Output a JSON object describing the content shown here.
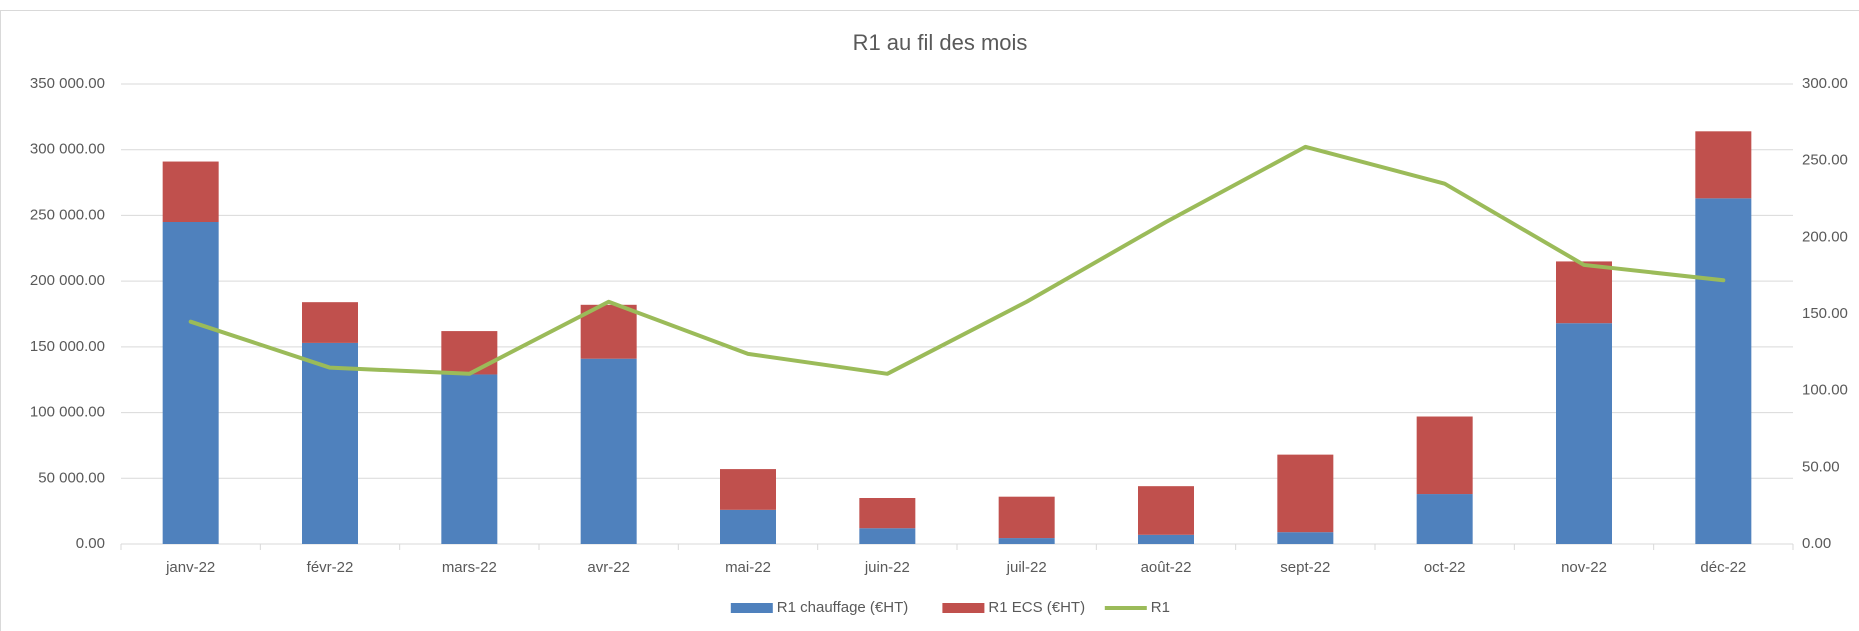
{
  "chart_data": {
    "type": "bar",
    "stacked": true,
    "title": "R1 au fil des mois",
    "categories": [
      "janv-22",
      "févr-22",
      "mars-22",
      "avr-22",
      "mai-22",
      "juin-22",
      "juil-22",
      "août-22",
      "sept-22",
      "oct-22",
      "nov-22",
      "déc-22"
    ],
    "series": [
      {
        "name": "R1 chauffage (€HT)",
        "type": "bar",
        "color": "#4f81bd",
        "values": [
          245000,
          153000,
          129000,
          141000,
          26000,
          12000,
          4500,
          7000,
          9000,
          38000,
          168000,
          263000
        ]
      },
      {
        "name": "R1 ECS (€HT)",
        "type": "bar",
        "color": "#c0504d",
        "values": [
          46000,
          31000,
          33000,
          41000,
          31000,
          23000,
          31500,
          37000,
          59000,
          59000,
          47000,
          51000
        ]
      },
      {
        "name": "R1",
        "type": "line",
        "axis": "y2",
        "color": "#9bbb59",
        "values": [
          145,
          115,
          111,
          158,
          124,
          111,
          158,
          210,
          259,
          235,
          182,
          172
        ]
      }
    ],
    "ylim": [
      0,
      350000
    ],
    "yticks": [
      {
        "value": 0,
        "label": "0.00"
      },
      {
        "value": 50000,
        "label": "50 000.00"
      },
      {
        "value": 100000,
        "label": "100 000.00"
      },
      {
        "value": 150000,
        "label": "150 000.00"
      },
      {
        "value": 200000,
        "label": "200 000.00"
      },
      {
        "value": 250000,
        "label": "250 000.00"
      },
      {
        "value": 300000,
        "label": "300 000.00"
      },
      {
        "value": 350000,
        "label": "350 000.00"
      }
    ],
    "y2lim": [
      0,
      300
    ],
    "y2ticks": [
      {
        "value": 0,
        "label": "0.00"
      },
      {
        "value": 50,
        "label": "50.00"
      },
      {
        "value": 100,
        "label": "100.00"
      },
      {
        "value": 150,
        "label": "150.00"
      },
      {
        "value": 200,
        "label": "200.00"
      },
      {
        "value": 250,
        "label": "250.00"
      },
      {
        "value": 300,
        "label": "300.00"
      }
    ],
    "grid": true,
    "legend": "bottom"
  }
}
